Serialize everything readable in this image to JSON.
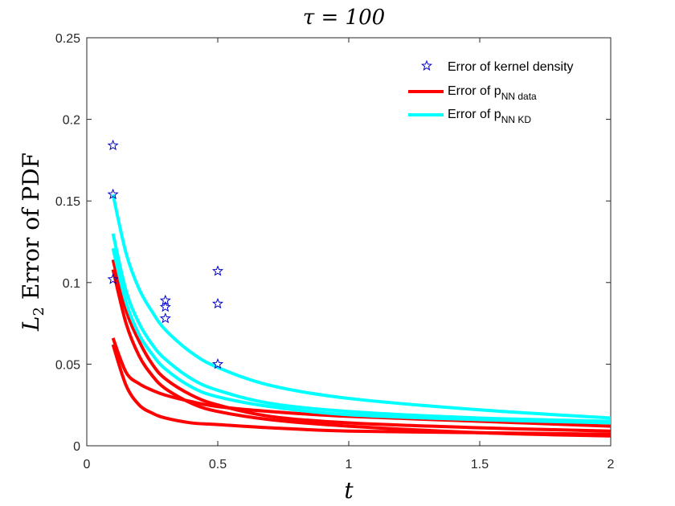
{
  "chart_data": {
    "type": "line",
    "title": "τ = 100",
    "xlabel": "t",
    "ylabel": "Error of PDF",
    "ylabel_math": "L",
    "ylabel_sub": "2",
    "xlim": [
      0,
      2
    ],
    "ylim": [
      0,
      0.25
    ],
    "x_ticks": [
      0,
      0.5,
      1,
      1.5,
      2
    ],
    "x_tick_labels": [
      "0",
      "0.5",
      "1",
      "1.5",
      "2"
    ],
    "y_ticks": [
      0,
      0.05,
      0.1,
      0.15,
      0.2,
      0.25
    ],
    "y_tick_labels": [
      "0",
      "0.05",
      "0.1",
      "0.15",
      "0.2",
      "0.25"
    ],
    "grid": false,
    "legend_position": "top-right",
    "legend": [
      {
        "key": "kde",
        "label": "Error of kernel density",
        "sub": "",
        "style": "star"
      },
      {
        "key": "nn_data",
        "label": "Error of p",
        "sub": "NN data",
        "style": "line"
      },
      {
        "key": "nn_kd",
        "label": "Error of p",
        "sub": "NN KD",
        "style": "line"
      }
    ],
    "colors": {
      "kde": "#0000cc",
      "nn_data": "#ff0000",
      "nn_kd": "#00ffff",
      "axis": "#262626"
    },
    "kde_points": [
      {
        "t": 0.1,
        "err": 0.184
      },
      {
        "t": 0.1,
        "err": 0.154
      },
      {
        "t": 0.1,
        "err": 0.102
      },
      {
        "t": 0.3,
        "err": 0.089
      },
      {
        "t": 0.3,
        "err": 0.085
      },
      {
        "t": 0.3,
        "err": 0.078
      },
      {
        "t": 0.5,
        "err": 0.107
      },
      {
        "t": 0.5,
        "err": 0.087
      },
      {
        "t": 0.5,
        "err": 0.05
      }
    ],
    "series": [
      {
        "name": "nn_data_1",
        "group": "nn_data",
        "x": [
          0.1,
          0.15,
          0.2,
          0.25,
          0.3,
          0.4,
          0.5,
          0.7,
          1.0,
          1.5,
          2.0
        ],
        "y": [
          0.114,
          0.083,
          0.064,
          0.05,
          0.041,
          0.031,
          0.025,
          0.018,
          0.014,
          0.011,
          0.009
        ]
      },
      {
        "name": "nn_data_2",
        "group": "nn_data",
        "x": [
          0.1,
          0.15,
          0.2,
          0.25,
          0.3,
          0.4,
          0.5,
          0.7,
          1.0,
          1.5,
          2.0
        ],
        "y": [
          0.066,
          0.045,
          0.038,
          0.034,
          0.031,
          0.027,
          0.024,
          0.021,
          0.018,
          0.015,
          0.012
        ]
      },
      {
        "name": "nn_data_3",
        "group": "nn_data",
        "x": [
          0.1,
          0.15,
          0.2,
          0.25,
          0.3,
          0.4,
          0.5,
          0.7,
          1.0,
          1.5,
          2.0
        ],
        "y": [
          0.062,
          0.037,
          0.025,
          0.02,
          0.017,
          0.014,
          0.013,
          0.011,
          0.009,
          0.008,
          0.007
        ]
      },
      {
        "name": "nn_data_4",
        "group": "nn_data",
        "x": [
          0.1,
          0.15,
          0.2,
          0.25,
          0.3,
          0.4,
          0.5,
          0.7,
          1.0,
          1.5,
          2.0
        ],
        "y": [
          0.108,
          0.075,
          0.055,
          0.043,
          0.035,
          0.026,
          0.021,
          0.016,
          0.012,
          0.008,
          0.006
        ]
      },
      {
        "name": "nn_kd_1",
        "group": "nn_kd",
        "x": [
          0.1,
          0.15,
          0.2,
          0.25,
          0.3,
          0.4,
          0.5,
          0.7,
          1.0,
          1.5,
          2.0
        ],
        "y": [
          0.154,
          0.118,
          0.096,
          0.082,
          0.071,
          0.057,
          0.048,
          0.037,
          0.029,
          0.022,
          0.017
        ]
      },
      {
        "name": "nn_kd_2",
        "group": "nn_kd",
        "x": [
          0.1,
          0.15,
          0.2,
          0.25,
          0.3,
          0.4,
          0.5,
          0.7,
          1.0,
          1.5,
          2.0
        ],
        "y": [
          0.13,
          0.095,
          0.075,
          0.062,
          0.053,
          0.041,
          0.034,
          0.026,
          0.021,
          0.017,
          0.015
        ]
      },
      {
        "name": "nn_kd_3",
        "group": "nn_kd",
        "x": [
          0.1,
          0.15,
          0.2,
          0.25,
          0.3,
          0.4,
          0.5,
          0.7,
          1.0,
          1.5,
          2.0
        ],
        "y": [
          0.121,
          0.088,
          0.068,
          0.056,
          0.047,
          0.036,
          0.03,
          0.024,
          0.019,
          0.016,
          0.014
        ]
      }
    ]
  }
}
